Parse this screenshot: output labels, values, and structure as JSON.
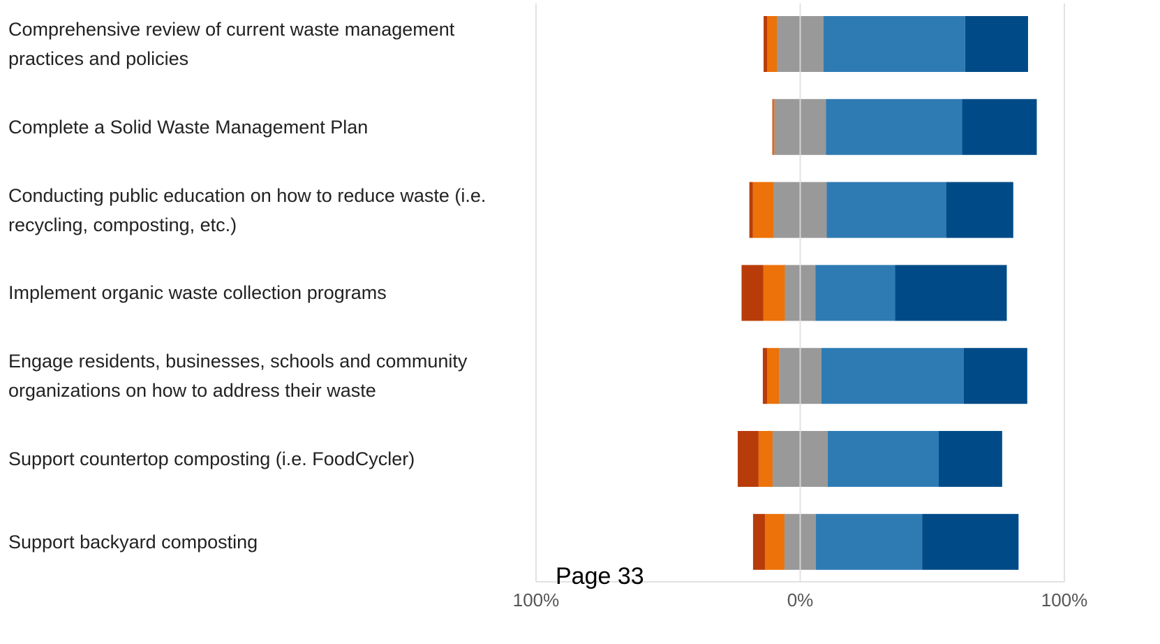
{
  "chart_data": {
    "type": "diverging_bar",
    "categories": [
      "Comprehensive review of current waste management practices and policies",
      "Complete a Solid Waste Management Plan",
      "Conducting public education on how to reduce waste (i.e. recycling, composting, etc.)",
      "Implement organic waste collection programs",
      "Engage residents, businesses, schools and community organizations on how to address their waste",
      "Support countertop composting  (i.e. FoodCycler)",
      "Support backyard composting"
    ],
    "series": [
      {
        "color": "#b83c0a",
        "values": [
          1.3,
          0.3,
          1.3,
          8.2,
          1.6,
          7.9,
          4.5
        ]
      },
      {
        "color": "#ec7209",
        "values": [
          3.7,
          0.5,
          7.9,
          8.2,
          4.5,
          5.3,
          7.4
        ]
      },
      {
        "color": "#999999",
        "values": [
          17.7,
          19.5,
          20.1,
          11.6,
          16.1,
          20.9,
          11.9
        ]
      },
      {
        "color": "#2e7bb4",
        "values": [
          53.6,
          51.5,
          45.2,
          30.1,
          53.9,
          42.0,
          40.2
        ]
      },
      {
        "color": "#004b87",
        "values": [
          23.8,
          28.3,
          25.4,
          42.3,
          24.0,
          24.0,
          36.5
        ]
      }
    ],
    "xlim": [
      -100,
      100
    ],
    "xticks": [
      {
        "value": -100,
        "label": "100%"
      },
      {
        "value": 0,
        "label": "0%"
      },
      {
        "value": 100,
        "label": "100%"
      }
    ],
    "grid": true
  },
  "footer": "Page 33"
}
